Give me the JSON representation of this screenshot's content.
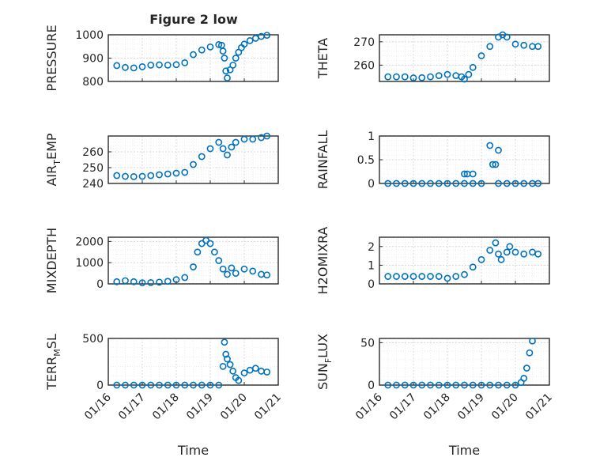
{
  "figure_title": "Figure 2 low",
  "colors": {
    "marker": "#0072BD",
    "axis": "#262626"
  },
  "x_axis": {
    "label": "Time",
    "range": [
      "2025-01-16",
      "2025-01-21"
    ],
    "ticks": [
      "2025-01-16",
      "2025-01-17",
      "2025-01-18",
      "2025-01-19",
      "2025-01-20",
      "2025-01-21"
    ],
    "tick_labels": [
      "01/16",
      "01/17",
      "01/18",
      "01/19",
      "01/20",
      "01/21"
    ]
  },
  "chart_data": [
    {
      "type": "scatter",
      "ylabel": "PRESSURE",
      "ylim": [
        800,
        1000
      ],
      "yticks": [
        800,
        900,
        1000
      ],
      "yticklabels": [
        "800",
        "900",
        "1000"
      ],
      "grid": true,
      "points": [
        [
          "2025-01-16 06:00",
          868
        ],
        [
          "2025-01-16 12:00",
          860
        ],
        [
          "2025-01-16 18:00",
          858
        ],
        [
          "2025-01-17 00:00",
          863
        ],
        [
          "2025-01-17 06:00",
          870
        ],
        [
          "2025-01-17 12:00",
          871
        ],
        [
          "2025-01-17 18:00",
          870
        ],
        [
          "2025-01-18 00:00",
          872
        ],
        [
          "2025-01-18 06:00",
          880
        ],
        [
          "2025-01-18 12:00",
          915
        ],
        [
          "2025-01-18 18:00",
          935
        ],
        [
          "2025-01-19 00:00",
          948
        ],
        [
          "2025-01-19 06:00",
          958
        ],
        [
          "2025-01-19 08:00",
          955
        ],
        [
          "2025-01-19 09:00",
          930
        ],
        [
          "2025-01-19 10:00",
          900
        ],
        [
          "2025-01-19 11:00",
          845
        ],
        [
          "2025-01-19 12:00",
          815
        ],
        [
          "2025-01-19 14:00",
          850
        ],
        [
          "2025-01-19 16:00",
          870
        ],
        [
          "2025-01-19 18:00",
          900
        ],
        [
          "2025-01-19 20:00",
          925
        ],
        [
          "2025-01-19 22:00",
          945
        ],
        [
          "2025-01-20 00:00",
          960
        ],
        [
          "2025-01-20 04:00",
          975
        ],
        [
          "2025-01-20 08:00",
          985
        ],
        [
          "2025-01-20 12:00",
          993
        ],
        [
          "2025-01-20 16:00",
          998
        ]
      ]
    },
    {
      "type": "scatter",
      "ylabel": "THETA",
      "ylim": [
        253,
        273
      ],
      "yticks": [
        260,
        270
      ],
      "yticklabels": [
        "260",
        "270"
      ],
      "grid": true,
      "points": [
        [
          "2025-01-16 06:00",
          255
        ],
        [
          "2025-01-16 12:00",
          255
        ],
        [
          "2025-01-16 18:00",
          255
        ],
        [
          "2025-01-17 00:00",
          254.5
        ],
        [
          "2025-01-17 06:00",
          254.6
        ],
        [
          "2025-01-17 12:00",
          255
        ],
        [
          "2025-01-17 18:00",
          255.5
        ],
        [
          "2025-01-18 00:00",
          256
        ],
        [
          "2025-01-18 06:00",
          255.5
        ],
        [
          "2025-01-18 10:00",
          255
        ],
        [
          "2025-01-18 12:00",
          254
        ],
        [
          "2025-01-18 15:00",
          256
        ],
        [
          "2025-01-18 18:00",
          259
        ],
        [
          "2025-01-19 00:00",
          264
        ],
        [
          "2025-01-19 06:00",
          268
        ],
        [
          "2025-01-19 12:00",
          272
        ],
        [
          "2025-01-19 15:00",
          273
        ],
        [
          "2025-01-19 18:00",
          272
        ],
        [
          "2025-01-20 00:00",
          269
        ],
        [
          "2025-01-20 06:00",
          268.5
        ],
        [
          "2025-01-20 12:00",
          268
        ],
        [
          "2025-01-20 16:00",
          268
        ]
      ]
    },
    {
      "type": "scatter",
      "ylabel": "AIR_TEMP",
      "ylim": [
        240,
        270
      ],
      "yticks": [
        240,
        250,
        260
      ],
      "yticklabels": [
        "240",
        "250",
        "260"
      ],
      "grid": true,
      "points": [
        [
          "2025-01-16 06:00",
          245
        ],
        [
          "2025-01-16 12:00",
          244.5
        ],
        [
          "2025-01-16 18:00",
          244.3
        ],
        [
          "2025-01-17 00:00",
          244.5
        ],
        [
          "2025-01-17 06:00",
          245
        ],
        [
          "2025-01-17 12:00",
          245.5
        ],
        [
          "2025-01-17 18:00",
          246
        ],
        [
          "2025-01-18 00:00",
          246.5
        ],
        [
          "2025-01-18 06:00",
          247
        ],
        [
          "2025-01-18 12:00",
          252
        ],
        [
          "2025-01-18 18:00",
          257
        ],
        [
          "2025-01-19 00:00",
          262
        ],
        [
          "2025-01-19 06:00",
          266
        ],
        [
          "2025-01-19 09:00",
          262
        ],
        [
          "2025-01-19 12:00",
          258
        ],
        [
          "2025-01-19 15:00",
          263
        ],
        [
          "2025-01-19 18:00",
          266
        ],
        [
          "2025-01-20 00:00",
          268
        ],
        [
          "2025-01-20 06:00",
          268
        ],
        [
          "2025-01-20 12:00",
          269
        ],
        [
          "2025-01-20 16:00",
          270
        ]
      ]
    },
    {
      "type": "scatter",
      "ylabel": "RAINFALL",
      "ylim": [
        0,
        1
      ],
      "yticks": [
        0,
        0.5,
        1
      ],
      "yticklabels": [
        "0",
        "0.5",
        "1"
      ],
      "grid": true,
      "points": [
        [
          "2025-01-16 06:00",
          0
        ],
        [
          "2025-01-16 12:00",
          0
        ],
        [
          "2025-01-16 18:00",
          0
        ],
        [
          "2025-01-17 00:00",
          0
        ],
        [
          "2025-01-17 06:00",
          0
        ],
        [
          "2025-01-17 12:00",
          0
        ],
        [
          "2025-01-17 18:00",
          0
        ],
        [
          "2025-01-18 00:00",
          0
        ],
        [
          "2025-01-18 06:00",
          0
        ],
        [
          "2025-01-18 12:00",
          0
        ],
        [
          "2025-01-18 12:00",
          0.2
        ],
        [
          "2025-01-18 14:00",
          0.2
        ],
        [
          "2025-01-18 18:00",
          0.2
        ],
        [
          "2025-01-18 18:00",
          0
        ],
        [
          "2025-01-19 00:00",
          0
        ],
        [
          "2025-01-19 06:00",
          0.8
        ],
        [
          "2025-01-19 08:00",
          0.4
        ],
        [
          "2025-01-19 10:00",
          0.4
        ],
        [
          "2025-01-19 12:00",
          0.7
        ],
        [
          "2025-01-19 12:00",
          0
        ],
        [
          "2025-01-19 18:00",
          0
        ],
        [
          "2025-01-20 00:00",
          0
        ],
        [
          "2025-01-20 06:00",
          0
        ],
        [
          "2025-01-20 12:00",
          0
        ],
        [
          "2025-01-20 16:00",
          0
        ]
      ]
    },
    {
      "type": "scatter",
      "ylabel": "MIXDEPTH",
      "ylim": [
        0,
        2200
      ],
      "yticks": [
        0,
        1000,
        2000
      ],
      "yticklabels": [
        "0",
        "1000",
        "2000"
      ],
      "grid": true,
      "points": [
        [
          "2025-01-16 06:00",
          100
        ],
        [
          "2025-01-16 12:00",
          150
        ],
        [
          "2025-01-16 18:00",
          100
        ],
        [
          "2025-01-17 00:00",
          50
        ],
        [
          "2025-01-17 06:00",
          60
        ],
        [
          "2025-01-17 12:00",
          80
        ],
        [
          "2025-01-17 18:00",
          120
        ],
        [
          "2025-01-18 00:00",
          200
        ],
        [
          "2025-01-18 06:00",
          300
        ],
        [
          "2025-01-18 12:00",
          800
        ],
        [
          "2025-01-18 15:00",
          1500
        ],
        [
          "2025-01-18 18:00",
          1900
        ],
        [
          "2025-01-18 21:00",
          2050
        ],
        [
          "2025-01-19 00:00",
          1900
        ],
        [
          "2025-01-19 03:00",
          1500
        ],
        [
          "2025-01-19 06:00",
          1100
        ],
        [
          "2025-01-19 09:00",
          700
        ],
        [
          "2025-01-19 12:00",
          450
        ],
        [
          "2025-01-19 15:00",
          750
        ],
        [
          "2025-01-19 18:00",
          500
        ],
        [
          "2025-01-20 00:00",
          700
        ],
        [
          "2025-01-20 06:00",
          600
        ],
        [
          "2025-01-20 12:00",
          450
        ],
        [
          "2025-01-20 16:00",
          420
        ]
      ]
    },
    {
      "type": "scatter",
      "ylabel": "H2OMIXRA",
      "ylim": [
        0,
        2.5
      ],
      "yticks": [
        0,
        1,
        2
      ],
      "yticklabels": [
        "0",
        "1",
        "2"
      ],
      "grid": true,
      "points": [
        [
          "2025-01-16 06:00",
          0.4
        ],
        [
          "2025-01-16 12:00",
          0.4
        ],
        [
          "2025-01-16 18:00",
          0.4
        ],
        [
          "2025-01-17 00:00",
          0.4
        ],
        [
          "2025-01-17 06:00",
          0.4
        ],
        [
          "2025-01-17 12:00",
          0.4
        ],
        [
          "2025-01-17 18:00",
          0.4
        ],
        [
          "2025-01-18 00:00",
          0.3
        ],
        [
          "2025-01-18 06:00",
          0.4
        ],
        [
          "2025-01-18 12:00",
          0.5
        ],
        [
          "2025-01-18 18:00",
          0.9
        ],
        [
          "2025-01-19 00:00",
          1.3
        ],
        [
          "2025-01-19 06:00",
          1.8
        ],
        [
          "2025-01-19 10:00",
          2.2
        ],
        [
          "2025-01-19 12:00",
          1.6
        ],
        [
          "2025-01-19 14:00",
          1.3
        ],
        [
          "2025-01-19 18:00",
          1.7
        ],
        [
          "2025-01-19 20:00",
          2.0
        ],
        [
          "2025-01-20 00:00",
          1.7
        ],
        [
          "2025-01-20 06:00",
          1.6
        ],
        [
          "2025-01-20 12:00",
          1.7
        ],
        [
          "2025-01-20 16:00",
          1.6
        ]
      ]
    },
    {
      "type": "scatter",
      "ylabel": "TERR_MSL",
      "ylim": [
        0,
        500
      ],
      "yticks": [
        0,
        500
      ],
      "yticklabels": [
        "0",
        "500"
      ],
      "grid": true,
      "points": [
        [
          "2025-01-16 06:00",
          0
        ],
        [
          "2025-01-16 12:00",
          0
        ],
        [
          "2025-01-16 18:00",
          0
        ],
        [
          "2025-01-17 00:00",
          0
        ],
        [
          "2025-01-17 06:00",
          0
        ],
        [
          "2025-01-17 12:00",
          0
        ],
        [
          "2025-01-17 18:00",
          0
        ],
        [
          "2025-01-18 00:00",
          0
        ],
        [
          "2025-01-18 06:00",
          0
        ],
        [
          "2025-01-18 12:00",
          0
        ],
        [
          "2025-01-18 18:00",
          0
        ],
        [
          "2025-01-19 00:00",
          0
        ],
        [
          "2025-01-19 06:00",
          0
        ],
        [
          "2025-01-19 09:00",
          200
        ],
        [
          "2025-01-19 10:00",
          460
        ],
        [
          "2025-01-19 11:00",
          330
        ],
        [
          "2025-01-19 12:00",
          280
        ],
        [
          "2025-01-19 14:00",
          220
        ],
        [
          "2025-01-19 16:00",
          150
        ],
        [
          "2025-01-19 18:00",
          80
        ],
        [
          "2025-01-19 20:00",
          50
        ],
        [
          "2025-01-20 00:00",
          130
        ],
        [
          "2025-01-20 04:00",
          160
        ],
        [
          "2025-01-20 08:00",
          180
        ],
        [
          "2025-01-20 12:00",
          150
        ],
        [
          "2025-01-20 16:00",
          140
        ]
      ]
    },
    {
      "type": "scatter",
      "ylabel": "SUN_FLUX",
      "ylim": [
        0,
        55
      ],
      "yticks": [
        0,
        50
      ],
      "yticklabels": [
        "0",
        "50"
      ],
      "grid": true,
      "points": [
        [
          "2025-01-16 06:00",
          0
        ],
        [
          "2025-01-16 12:00",
          0
        ],
        [
          "2025-01-16 18:00",
          0
        ],
        [
          "2025-01-17 00:00",
          0
        ],
        [
          "2025-01-17 06:00",
          0
        ],
        [
          "2025-01-17 12:00",
          0
        ],
        [
          "2025-01-17 18:00",
          0
        ],
        [
          "2025-01-18 00:00",
          0
        ],
        [
          "2025-01-18 06:00",
          0
        ],
        [
          "2025-01-18 12:00",
          0
        ],
        [
          "2025-01-18 18:00",
          0
        ],
        [
          "2025-01-19 00:00",
          0
        ],
        [
          "2025-01-19 06:00",
          0
        ],
        [
          "2025-01-19 12:00",
          0
        ],
        [
          "2025-01-19 18:00",
          0
        ],
        [
          "2025-01-20 00:00",
          0
        ],
        [
          "2025-01-20 04:00",
          3
        ],
        [
          "2025-01-20 06:00",
          8
        ],
        [
          "2025-01-20 08:00",
          20
        ],
        [
          "2025-01-20 10:00",
          38
        ],
        [
          "2025-01-20 12:00",
          52
        ]
      ]
    }
  ]
}
